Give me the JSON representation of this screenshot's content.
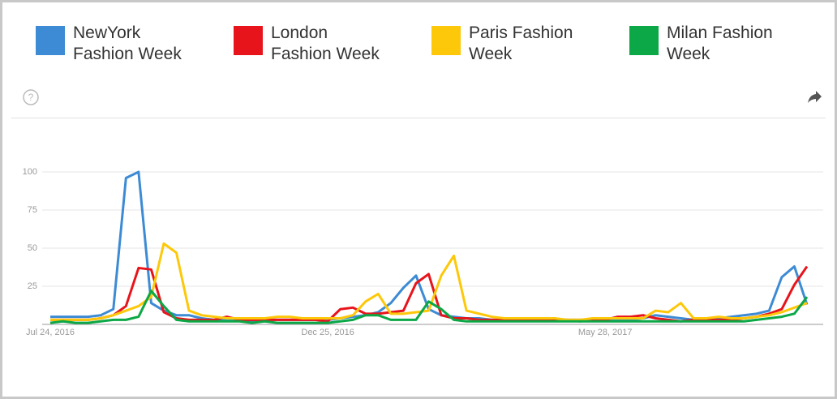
{
  "chart_data": {
    "type": "line",
    "categories": [
      "Jul 24, 2016",
      null,
      null,
      null,
      null,
      null,
      null,
      null,
      null,
      null,
      null,
      null,
      null,
      null,
      null,
      null,
      null,
      null,
      null,
      null,
      null,
      null,
      "Dec 25, 2016",
      null,
      null,
      null,
      null,
      null,
      null,
      null,
      null,
      null,
      null,
      null,
      null,
      null,
      null,
      null,
      null,
      null,
      null,
      null,
      null,
      null,
      "May 28, 2017",
      null,
      null,
      null,
      null,
      null,
      null,
      null,
      null,
      null,
      null,
      null,
      null,
      null,
      null,
      null,
      null
    ],
    "series": [
      {
        "name": "NewYork Fashion Week",
        "color": "#3d8bd4",
        "values": [
          5,
          5,
          5,
          5,
          6,
          10,
          96,
          100,
          14,
          9,
          6,
          6,
          4,
          3,
          3,
          3,
          2,
          3,
          3,
          3,
          3,
          3,
          3,
          4,
          5,
          6,
          8,
          14,
          24,
          32,
          10,
          6,
          5,
          4,
          4,
          3,
          3,
          3,
          3,
          3,
          3,
          3,
          2,
          3,
          3,
          3,
          3,
          4,
          6,
          5,
          4,
          3,
          3,
          4,
          5,
          6,
          7,
          9,
          31,
          38,
          13
        ]
      },
      {
        "name": "London Fashion Week",
        "color": "#e8141c",
        "values": [
          3,
          3,
          3,
          3,
          4,
          6,
          12,
          37,
          36,
          8,
          4,
          3,
          3,
          3,
          5,
          3,
          3,
          3,
          3,
          3,
          3,
          3,
          2,
          10,
          11,
          7,
          7,
          8,
          9,
          27,
          33,
          6,
          4,
          4,
          3,
          3,
          3,
          3,
          3,
          3,
          3,
          3,
          3,
          3,
          3,
          5,
          5,
          6,
          4,
          3,
          2,
          3,
          3,
          3,
          3,
          4,
          5,
          7,
          10,
          26,
          38
        ]
      },
      {
        "name": "Paris Fashion Week",
        "color": "#fdc80a",
        "values": [
          3,
          3,
          3,
          3,
          4,
          6,
          9,
          12,
          18,
          53,
          47,
          9,
          6,
          5,
          4,
          4,
          4,
          4,
          5,
          5,
          4,
          4,
          4,
          4,
          6,
          15,
          20,
          7,
          7,
          8,
          9,
          32,
          45,
          9,
          7,
          5,
          4,
          4,
          4,
          4,
          4,
          3,
          3,
          4,
          4,
          4,
          4,
          4,
          9,
          8,
          14,
          4,
          4,
          5,
          4,
          4,
          5,
          6,
          8,
          11,
          14
        ]
      },
      {
        "name": "Milan Fashion Week",
        "color": "#0ca746",
        "values": [
          1,
          2,
          1,
          1,
          2,
          3,
          3,
          5,
          22,
          12,
          3,
          2,
          2,
          2,
          2,
          2,
          1,
          2,
          1,
          1,
          1,
          1,
          1,
          2,
          3,
          6,
          6,
          3,
          3,
          3,
          15,
          10,
          3,
          2,
          2,
          2,
          2,
          2,
          2,
          2,
          2,
          2,
          2,
          2,
          2,
          2,
          2,
          2,
          2,
          2,
          2,
          2,
          2,
          2,
          2,
          2,
          3,
          4,
          5,
          7,
          18
        ]
      }
    ],
    "ylim": [
      0,
      100
    ],
    "yticks": [
      25,
      50,
      75,
      100
    ],
    "grid": true
  }
}
